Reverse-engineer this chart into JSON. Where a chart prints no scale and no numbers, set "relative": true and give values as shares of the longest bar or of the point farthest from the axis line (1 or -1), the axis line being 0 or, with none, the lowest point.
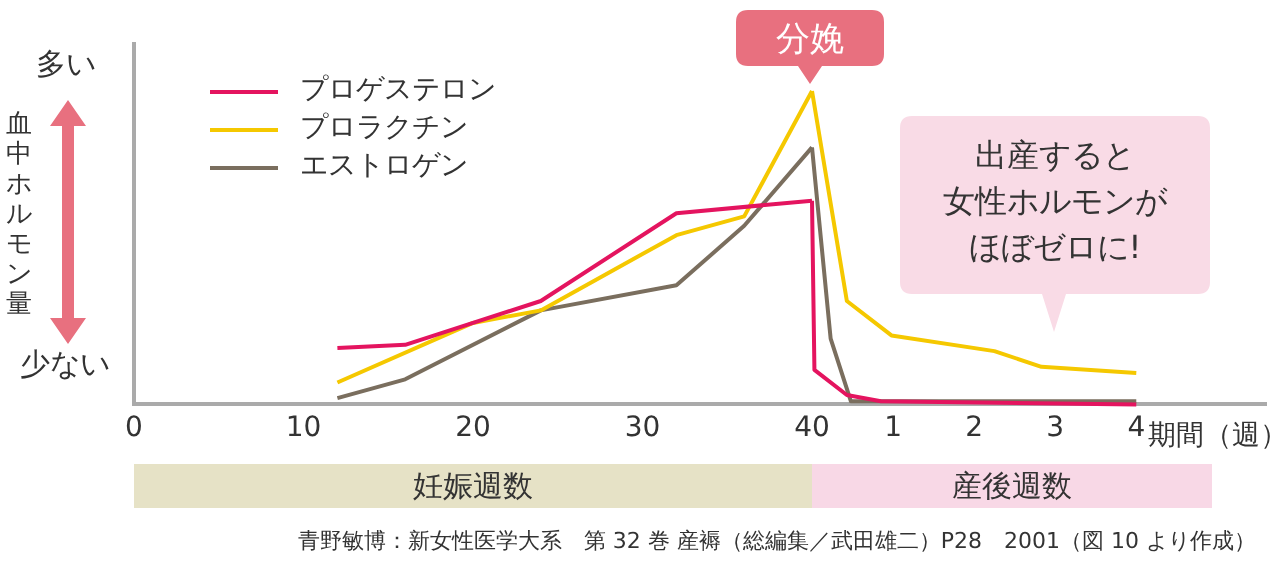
{
  "chart_data": [
    {
      "type": "line",
      "relative": true,
      "ylabel": "血中ホルモン量",
      "xlabel": "妊娠週数",
      "xlim": [
        0,
        40
      ],
      "xticks": [
        0,
        10,
        20,
        30,
        40
      ],
      "series": [
        {
          "name": "プロゲステロン",
          "color": "#e4145f",
          "x": [
            12,
            16,
            24,
            32,
            40
          ],
          "values": [
            0.18,
            0.19,
            0.33,
            0.61,
            0.65
          ]
        },
        {
          "name": "プロラクチン",
          "color": "#f5c800",
          "x": [
            12,
            20,
            24,
            32,
            36,
            40
          ],
          "values": [
            0.07,
            0.26,
            0.3,
            0.54,
            0.6,
            1
          ]
        },
        {
          "name": "エストロゲン",
          "color": "#7a6e5e",
          "x": [
            12,
            16,
            24,
            32,
            36,
            40
          ],
          "values": [
            0.02,
            0.08,
            0.3,
            0.38,
            0.57,
            0.82
          ]
        }
      ],
      "legend": "top left",
      "marker": "none",
      "line_style": "solid",
      "annotations": [
        "多い",
        "少ない",
        "分娩",
        "青野敏博：新女性医学大系　第 32 巻 産褥（総編集／武田雄二）P28　2001（図 10 より作成）"
      ]
    },
    {
      "type": "line",
      "relative": true,
      "xlabel": "産後週数",
      "xlim": [
        0,
        5.6
      ],
      "xticks": [
        1,
        2,
        3,
        4
      ],
      "series": [
        {
          "color": "#e4145f",
          "x": [
            0,
            0.03,
            0.43,
            0.85,
            4
          ],
          "values": [
            0.65,
            0.11,
            0.03,
            0.01,
            0
          ]
        },
        {
          "color": "#f5c800",
          "x": [
            0,
            0.43,
            0.98,
            2.25,
            2.83,
            4
          ],
          "values": [
            1,
            0.33,
            0.22,
            0.17,
            0.12,
            0.1
          ]
        },
        {
          "color": "#7a6e5e",
          "x": [
            0,
            0.23,
            0.48,
            4
          ],
          "values": [
            0.82,
            0.21,
            0.01,
            0.01
          ]
        }
      ],
      "marker": "none",
      "line_style": "solid",
      "annotations": [
        "期間（週）",
        "出産すると女性ホルモンがほぼゼロに!"
      ]
    }
  ]
}
